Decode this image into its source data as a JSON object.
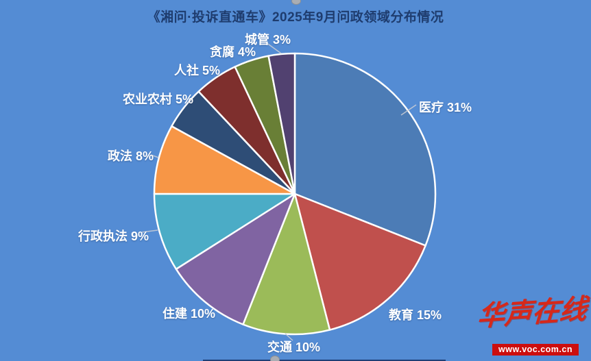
{
  "title": "《湘问·投诉直通车》2025年9月问政领域分布情况",
  "colors": {
    "background": "#548cd4",
    "title": "#1e3c6e",
    "slice_outline": "#ffffff",
    "leader_line": "#c8ccd4",
    "label_text": "#ffffff"
  },
  "chart_data": {
    "type": "pie",
    "title": "《湘问·投诉直通车》2025年9月问政领域分布情况",
    "direction": "clockwise",
    "start_angle_deg": 0,
    "label_format": "{label} {value}%",
    "slices": [
      {
        "label": "医疗",
        "value": 31,
        "color": "#4c7cb6"
      },
      {
        "label": "教育",
        "value": 15,
        "color": "#c0504d"
      },
      {
        "label": "交通",
        "value": 10,
        "color": "#9bbb59"
      },
      {
        "label": "住建",
        "value": 10,
        "color": "#8064a2"
      },
      {
        "label": "行政执法",
        "value": 9,
        "color": "#4bacc6"
      },
      {
        "label": "政法",
        "value": 8,
        "color": "#f79646"
      },
      {
        "label": "农业农村",
        "value": 5,
        "color": "#2e4d76"
      },
      {
        "label": "人社",
        "value": 5,
        "color": "#7e2f2d"
      },
      {
        "label": "贪腐",
        "value": 4,
        "color": "#697f36"
      },
      {
        "label": "城管",
        "value": 3,
        "color": "#514170"
      }
    ]
  },
  "watermark": {
    "brand": "华声在线",
    "url": "www.voc.com.cn",
    "brand_color": "#d6281a",
    "bar_color": "#cc0e0e"
  }
}
